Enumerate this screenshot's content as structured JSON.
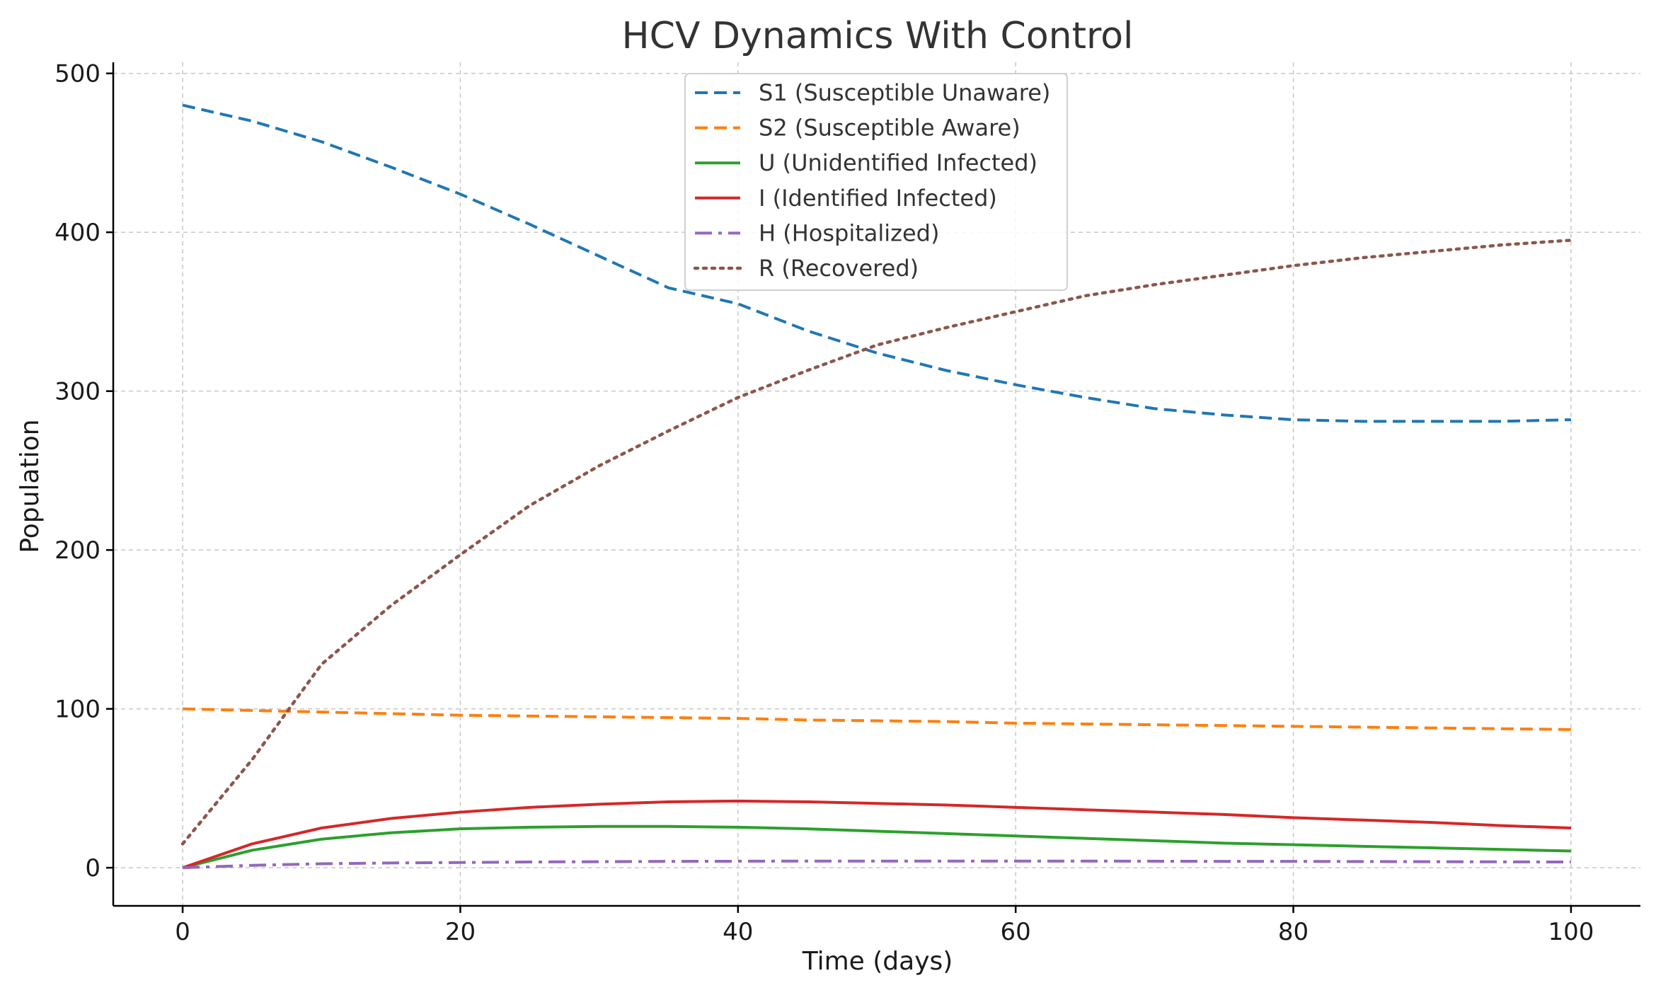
{
  "chart_data": {
    "type": "line",
    "title": "HCV Dynamics With Control",
    "xlabel": "Time (days)",
    "ylabel": "Population",
    "xlim": [
      -5,
      105
    ],
    "ylim": [
      -24,
      507
    ],
    "grid": true,
    "legend_position": "upper-center",
    "xticks": [
      0,
      20,
      40,
      60,
      80,
      100
    ],
    "yticks": [
      0,
      100,
      200,
      300,
      400,
      500
    ],
    "x": [
      0,
      5,
      10,
      15,
      20,
      25,
      30,
      35,
      40,
      45,
      50,
      55,
      60,
      65,
      70,
      75,
      80,
      85,
      90,
      95,
      100
    ],
    "series": [
      {
        "name": "S1 (Susceptible Unaware)",
        "color": "#1f77b4",
        "style": "dashed",
        "values": [
          480,
          470,
          457,
          441,
          424,
          405,
          385,
          365,
          355,
          338,
          324,
          313,
          304,
          296,
          289,
          285,
          282,
          281,
          281,
          281,
          282
        ]
      },
      {
        "name": "S2 (Susceptible Aware)",
        "color": "#ff7f0e",
        "style": "dashed",
        "values": [
          100,
          99,
          98,
          97,
          96,
          95.5,
          95,
          94.5,
          94,
          93,
          92.5,
          92,
          91,
          90.5,
          90,
          89.5,
          89,
          88.5,
          88,
          87.5,
          87
        ]
      },
      {
        "name": "U (Unidentified Infected)",
        "color": "#2ca02c",
        "style": "solid",
        "values": [
          0,
          11,
          18,
          22,
          24.5,
          25.5,
          26,
          26,
          25.5,
          24.5,
          23,
          21.5,
          20,
          18.5,
          17,
          15.5,
          14.5,
          13.5,
          12.5,
          11.5,
          10.5
        ]
      },
      {
        "name": "I (Identified Infected)",
        "color": "#d62728",
        "style": "solid",
        "values": [
          0,
          15,
          25,
          31,
          35,
          38,
          40,
          41.5,
          42,
          41.5,
          40.5,
          39.5,
          38,
          36.5,
          35,
          33.5,
          31.5,
          30,
          28.5,
          26.5,
          25
        ]
      },
      {
        "name": "H (Hospitalized)",
        "color": "#9467bd",
        "style": "dashdot",
        "values": [
          0,
          1.5,
          2.5,
          3,
          3.3,
          3.6,
          3.8,
          4,
          4.1,
          4.2,
          4.2,
          4.2,
          4.2,
          4.2,
          4.1,
          4,
          4,
          3.9,
          3.8,
          3.7,
          3.6
        ]
      },
      {
        "name": "R (Recovered)",
        "color": "#8c564b",
        "style": "dotted",
        "values": [
          15,
          68,
          128,
          165,
          197,
          228,
          253,
          275,
          296,
          313,
          329,
          340,
          350,
          360,
          367,
          373,
          379,
          384,
          388,
          392,
          395
        ]
      }
    ]
  }
}
